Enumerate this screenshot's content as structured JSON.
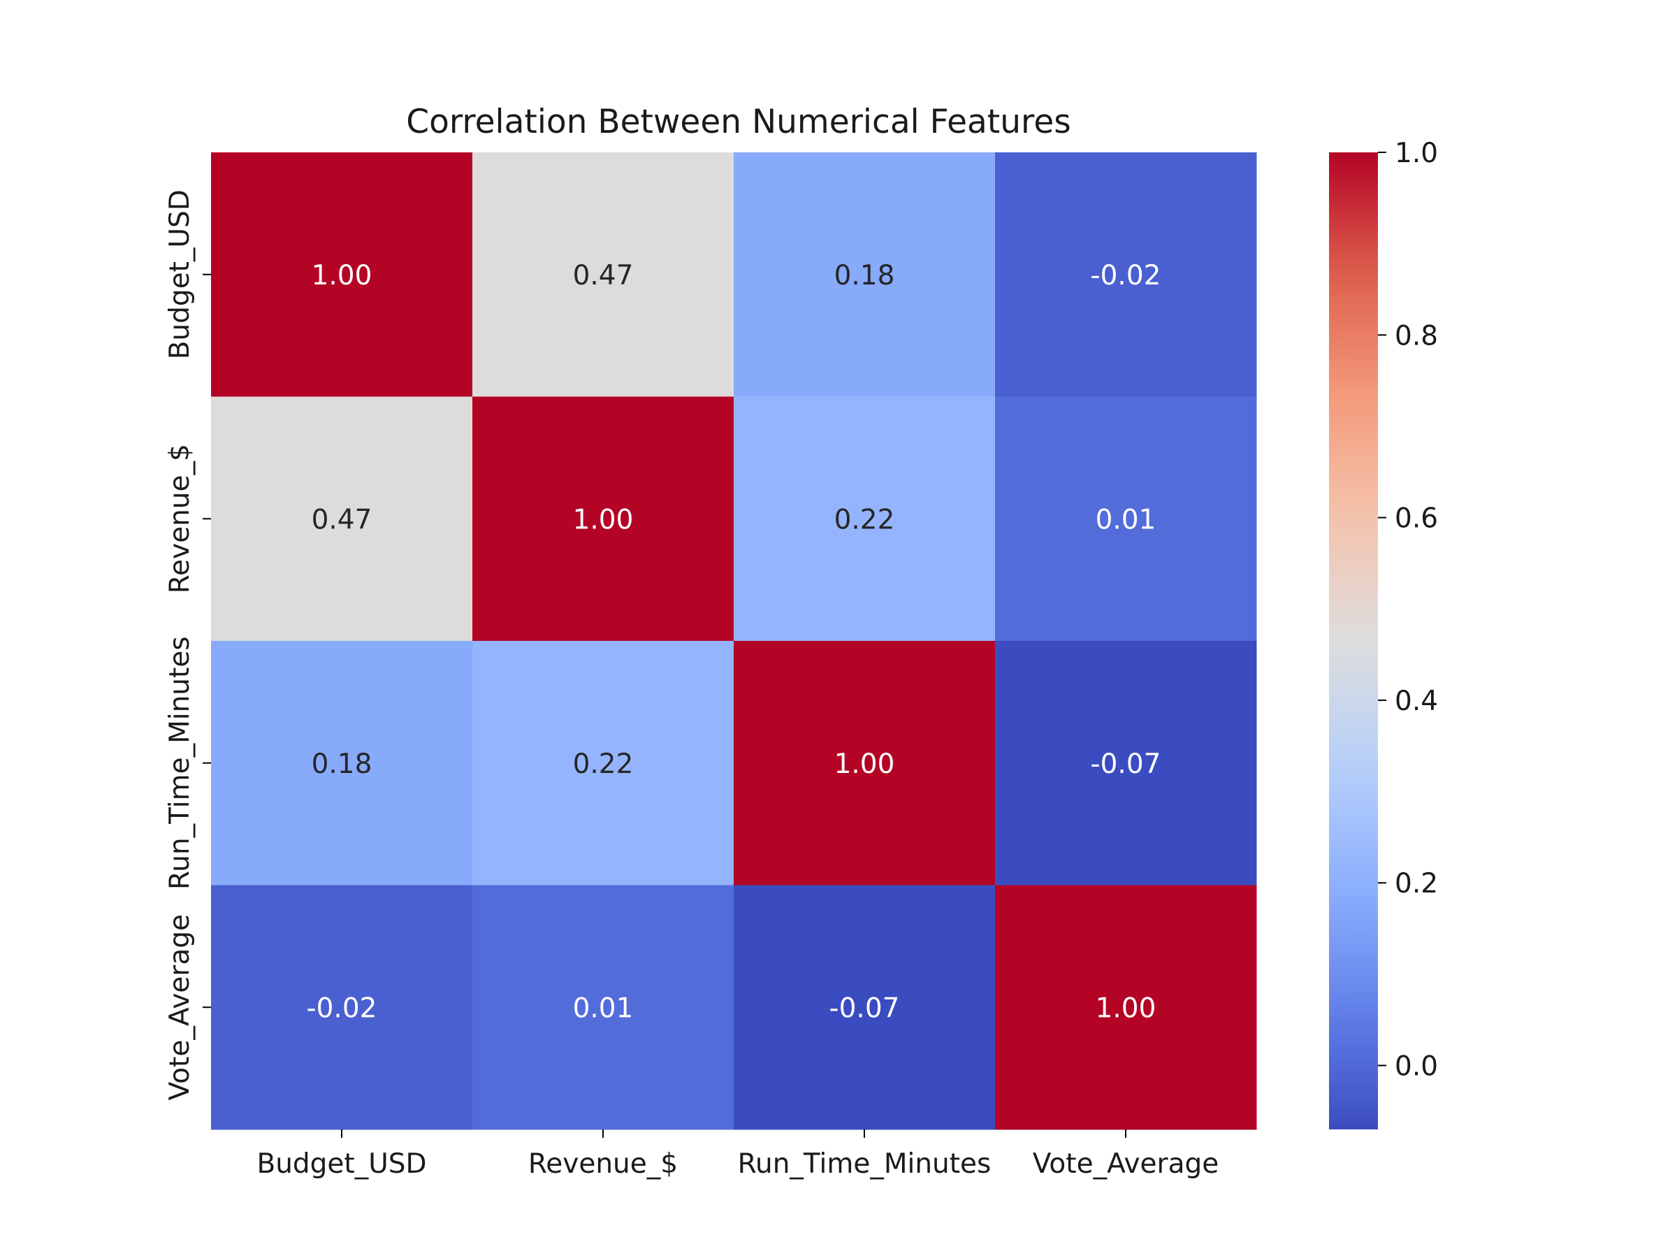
{
  "chart_data": {
    "type": "heatmap",
    "title": "Correlation Between Numerical Features",
    "row_labels": [
      "Budget_USD",
      "Revenue_$",
      "Run_Time_Minutes",
      "Vote_Average"
    ],
    "col_labels": [
      "Budget_USD",
      "Revenue_$",
      "Run_Time_Minutes",
      "Vote_Average"
    ],
    "values": [
      [
        1.0,
        0.47,
        0.18,
        -0.02
      ],
      [
        0.47,
        1.0,
        0.22,
        0.01
      ],
      [
        0.18,
        0.22,
        1.0,
        -0.07
      ],
      [
        -0.02,
        0.01,
        -0.07,
        1.0
      ]
    ],
    "annotations": [
      [
        "1.00",
        "0.47",
        "0.18",
        "-0.02"
      ],
      [
        "0.47",
        "1.00",
        "0.22",
        "0.01"
      ],
      [
        "0.18",
        "0.22",
        "1.00",
        "-0.07"
      ],
      [
        "-0.02",
        "0.01",
        "-0.07",
        "1.00"
      ]
    ],
    "colormap": "coolwarm",
    "colorbar": {
      "range": [
        -0.07,
        1.0
      ],
      "ticks": [
        0.0,
        0.2,
        0.4,
        0.6,
        0.8,
        1.0
      ],
      "tick_labels": [
        "0.0",
        "0.2",
        "0.4",
        "0.6",
        "0.8",
        "1.0"
      ]
    },
    "grid": false,
    "legend": "colorbar-right"
  }
}
